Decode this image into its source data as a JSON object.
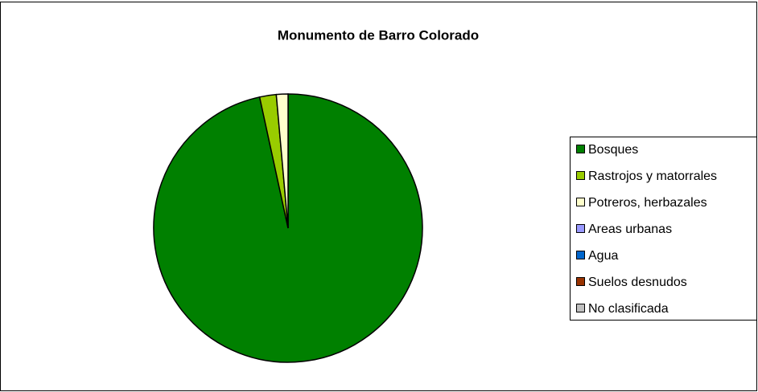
{
  "chart_data": {
    "type": "pie",
    "title": "Monumento de Barro Colorado",
    "categories": [
      "Bosques",
      "Rastrojos y matorrales",
      "Potreros, herbazales",
      "Areas urbanas",
      "Agua",
      "Suelos desnudos",
      "No clasificada"
    ],
    "values": [
      96.6,
      2.0,
      1.4,
      0,
      0,
      0,
      0
    ],
    "colors": [
      "#008000",
      "#99cc00",
      "#ffffcc",
      "#9999ff",
      "#0066cc",
      "#993300",
      "#c0c0c0"
    ],
    "legend": "right"
  }
}
